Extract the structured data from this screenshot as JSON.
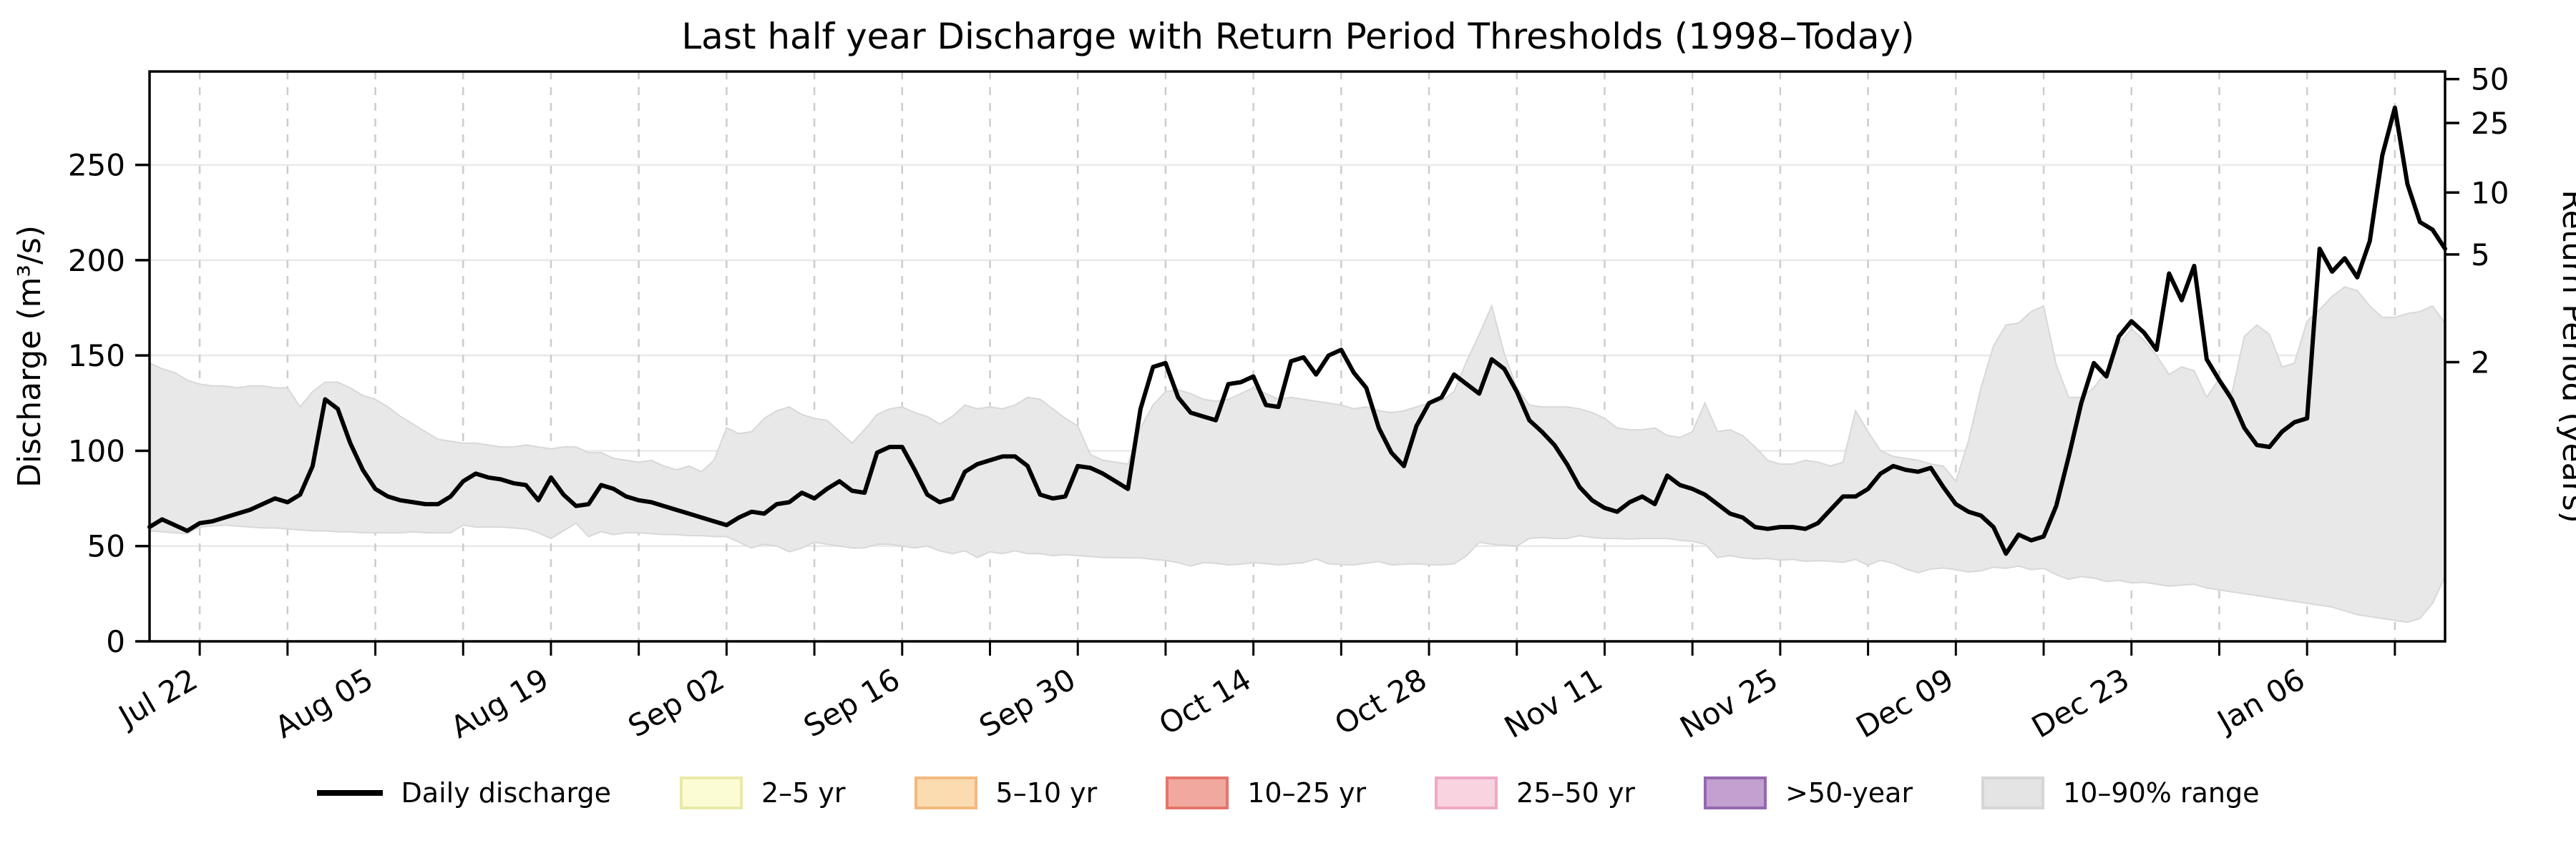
{
  "figure": {
    "title": "Last half year Discharge with Return Period Thresholds (1998–Today)"
  },
  "axes": {
    "left_label": "Discharge (m³/s)",
    "right_label": "Return Period (years)",
    "left_ticks": [
      0,
      50,
      100,
      150,
      200,
      250
    ],
    "right_ticks": [
      {
        "label": "50",
        "value": 295
      },
      {
        "label": "25",
        "value": 272
      },
      {
        "label": "10",
        "value": 235.5
      },
      {
        "label": "5",
        "value": 203
      },
      {
        "label": "2",
        "value": 146.5
      }
    ],
    "ylim": [
      0,
      299
    ],
    "x_minor_tick_every_days": 7,
    "x_labeled_ticks": [
      {
        "index": 4,
        "label": "Jul 22"
      },
      {
        "index": 18,
        "label": "Aug 05"
      },
      {
        "index": 32,
        "label": "Aug 19"
      },
      {
        "index": 46,
        "label": "Sep 02"
      },
      {
        "index": 60,
        "label": "Sep 16"
      },
      {
        "index": 74,
        "label": "Sep 30"
      },
      {
        "index": 88,
        "label": "Oct 14"
      },
      {
        "index": 102,
        "label": "Oct 28"
      },
      {
        "index": 116,
        "label": "Nov 11"
      },
      {
        "index": 130,
        "label": "Nov 25"
      },
      {
        "index": 144,
        "label": "Dec 09"
      },
      {
        "index": 158,
        "label": "Dec 23"
      },
      {
        "index": 172,
        "label": "Jan 06"
      }
    ]
  },
  "legend": {
    "items": [
      {
        "label": "Daily discharge",
        "type": "line",
        "color": "#000000",
        "border": "#000000"
      },
      {
        "label": "2–5 yr",
        "type": "patch",
        "color": "#FCFCD4",
        "border": "#E9E9A9"
      },
      {
        "label": "5–10 yr",
        "type": "patch",
        "color": "#FBDBB0",
        "border": "#F4B97E"
      },
      {
        "label": "10–25 yr",
        "type": "patch",
        "color": "#F1A99F",
        "border": "#E4766B"
      },
      {
        "label": "25–50 yr",
        "type": "patch",
        "color": "#F9D3E0",
        "border": "#F0A8C4"
      },
      {
        "label": ">50-year",
        "type": "patch",
        "color": "#C2A0CF",
        "border": "#9468AE"
      },
      {
        "label": "10–90% range",
        "type": "patch",
        "color": "#E4E4E4",
        "border": "#D6D6D6"
      }
    ]
  },
  "style": {
    "line_color": "#000000",
    "band_fill": "#E8E8E8",
    "band_edge": "#D8D8D8",
    "hgrid_color": "#E9E9E9",
    "vgrid_color": "#CCCCCC",
    "spine_color": "#000000"
  },
  "chart_data": {
    "type": "line",
    "title": "Last half year Discharge with Return Period Thresholds (1998–Today)",
    "xlabel": "",
    "ylabel": "Discharge (m³/s)",
    "y2label": "Return Period (years)",
    "x_start": "Jul 18",
    "x_end": "Jan 17",
    "n_points": 184,
    "ylim": [
      0,
      299
    ],
    "grid": true,
    "legend_position": "bottom",
    "return_period_thresholds_m3s": {
      "2yr": 146.5,
      "5yr": 203,
      "10yr": 235.5,
      "25yr": 272,
      "50yr": 295
    },
    "series": [
      {
        "name": "Daily discharge",
        "values": [
          60,
          64,
          61,
          58,
          62,
          63,
          65,
          67,
          69,
          72,
          75,
          73,
          77,
          92,
          127,
          122,
          104,
          90,
          80,
          76,
          74,
          73,
          72,
          72,
          76,
          84,
          88,
          86,
          85,
          83,
          82,
          74,
          86,
          77,
          71,
          72,
          82,
          80,
          76,
          74,
          73,
          71,
          69,
          67,
          65,
          63,
          61,
          65,
          68,
          67,
          72,
          73,
          78,
          75,
          80,
          84,
          79,
          78,
          99,
          102,
          102,
          90,
          77,
          73,
          75,
          89,
          93,
          95,
          97,
          97,
          92,
          77,
          75,
          76,
          92,
          91,
          88,
          84,
          80,
          122,
          144,
          146,
          128,
          120,
          118,
          116,
          135,
          136,
          139,
          124,
          123,
          147,
          149,
          140,
          150,
          153,
          141,
          133,
          112,
          99,
          92,
          113,
          125,
          128,
          140,
          135,
          130,
          148,
          143,
          131,
          116,
          110,
          103,
          93,
          81,
          74,
          70,
          68,
          73,
          76,
          72,
          87,
          82,
          80,
          77,
          72,
          67,
          65,
          60,
          59,
          60,
          60,
          59,
          62,
          69,
          76,
          76,
          80,
          88,
          92,
          90,
          89,
          91,
          81,
          72,
          68,
          66,
          60,
          46,
          56,
          53,
          55,
          71,
          97,
          125,
          146,
          139,
          160,
          168,
          162,
          153,
          193,
          179,
          197,
          148,
          137,
          127,
          112,
          103,
          102,
          110,
          115,
          117,
          206,
          194,
          201,
          191,
          210,
          255,
          280,
          240,
          220,
          216,
          206
        ]
      },
      {
        "name": "10–90% range upper",
        "values": [
          146,
          143,
          141,
          137,
          135,
          134,
          134,
          133,
          134,
          134,
          133,
          133,
          123,
          131,
          136,
          136,
          133,
          129,
          127,
          123,
          118,
          114,
          110,
          106,
          105,
          104,
          104,
          103,
          102,
          102,
          103,
          102,
          101,
          102,
          102,
          99,
          99,
          96,
          95,
          94,
          95,
          92,
          90,
          92,
          89,
          95,
          112,
          109,
          110,
          117,
          121,
          123,
          119,
          117,
          116,
          110,
          104,
          111,
          119,
          122,
          123,
          120,
          118,
          114,
          118,
          124,
          122,
          123,
          122,
          124,
          128,
          127,
          122,
          117,
          113,
          98,
          95,
          94,
          93,
          112,
          124,
          131,
          132,
          130,
          127,
          126,
          127,
          130,
          133,
          130,
          127,
          128,
          127,
          126,
          125,
          124,
          122,
          123,
          121,
          120,
          121,
          123,
          125,
          126,
          131,
          147,
          161,
          176,
          151,
          133,
          124,
          123,
          123,
          123,
          122,
          120,
          117,
          112,
          111,
          111,
          112,
          108,
          107,
          110,
          125,
          110,
          111,
          108,
          102,
          95,
          93,
          93,
          95,
          94,
          92,
          94,
          121,
          110,
          100,
          97,
          96,
          95,
          93,
          92,
          84,
          105,
          133,
          155,
          166,
          167,
          173,
          176,
          145,
          128,
          128,
          133,
          142,
          156,
          164,
          158,
          150,
          140,
          144,
          142,
          128,
          138,
          130,
          160,
          166,
          161,
          144,
          146,
          168,
          174,
          181,
          186,
          184,
          176,
          170,
          170,
          172,
          173,
          176,
          167
        ]
      },
      {
        "name": "10–90% range lower",
        "values": [
          58,
          57.5,
          57,
          56.5,
          60,
          60.5,
          61,
          60.5,
          60,
          59.5,
          59.5,
          59,
          58.5,
          58,
          58,
          57.5,
          57.5,
          57,
          57,
          57,
          57,
          57.5,
          57,
          57,
          57,
          61,
          60,
          60,
          60,
          59.5,
          59,
          57,
          54,
          58,
          62,
          55,
          57.5,
          56,
          57,
          57,
          56.5,
          56,
          56,
          55.5,
          55.5,
          55,
          55,
          52,
          49,
          51,
          50,
          47,
          49,
          52,
          51,
          50,
          49,
          49,
          51,
          51,
          50,
          49,
          50,
          47.5,
          46,
          47.5,
          44,
          47,
          46,
          47.5,
          46,
          46,
          45,
          45.5,
          45,
          44.5,
          44,
          44,
          43.8,
          43.8,
          43,
          42.5,
          41.3,
          39.5,
          41.3,
          41,
          40.1,
          40.5,
          41.3,
          40.8,
          40.1,
          40.7,
          41.3,
          43.2,
          40.7,
          40.3,
          40.1,
          41,
          41.9,
          40.1,
          40.4,
          40.7,
          40.3,
          40.1,
          40.7,
          45,
          52,
          51,
          50.5,
          50,
          54,
          54.5,
          54,
          54,
          55.5,
          54.5,
          54,
          54,
          53.7,
          54,
          54,
          54,
          53,
          52.5,
          51,
          44,
          45,
          43.8,
          43.2,
          43.5,
          42.6,
          43,
          42,
          42.3,
          42,
          41.5,
          43,
          40,
          42.5,
          41,
          38,
          36,
          38,
          38.5,
          37.6,
          36.4,
          37,
          38.9,
          38.3,
          39.5,
          37.6,
          38.3,
          35,
          32.6,
          34,
          33.2,
          31.4,
          32,
          30.7,
          31,
          30,
          29,
          29.5,
          30,
          28,
          27,
          26,
          25,
          24,
          23,
          22,
          21,
          20,
          19,
          18,
          16,
          14,
          13,
          12,
          11,
          10,
          12,
          20,
          34
        ]
      }
    ]
  }
}
